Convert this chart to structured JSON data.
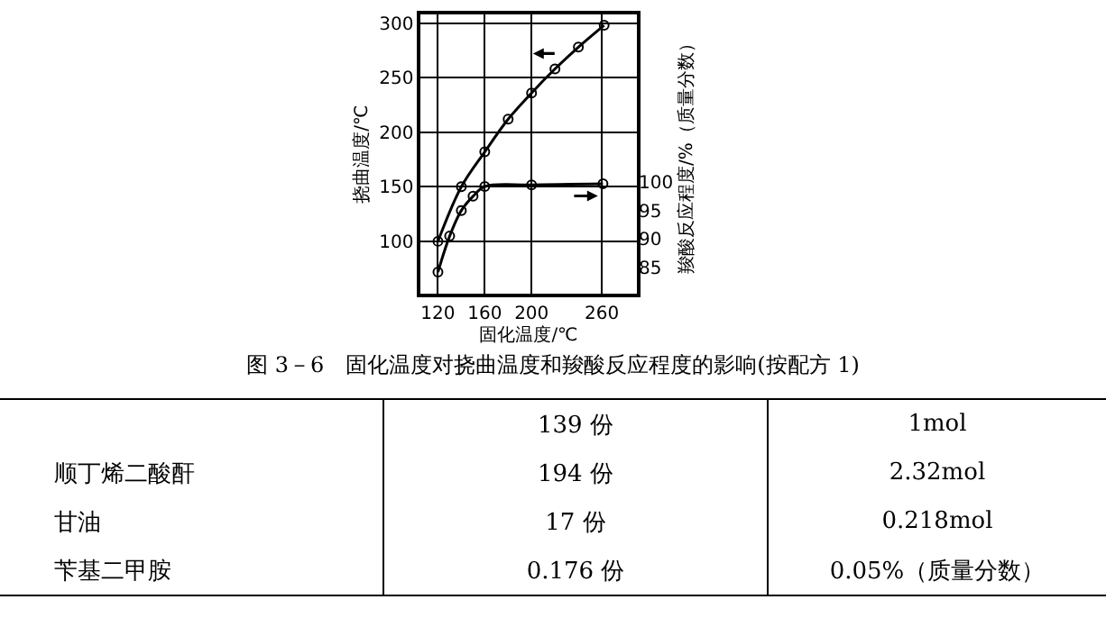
{
  "chart_data": {
    "type": "line",
    "title": "图 3－6　固化温度对挠曲温度和羧酸反应程度的影响(按配方 1)",
    "xlabel": "固化温度/℃",
    "ylabel": "挠曲温度/℃",
    "y2label": "羧酸反应程度/%（质量分数）",
    "xlim": [
      105,
      290
    ],
    "xticks": [
      120,
      160,
      200,
      260
    ],
    "ylim": [
      52,
      308
    ],
    "yticks": [
      100,
      150,
      200,
      250,
      300
    ],
    "y2lim": [
      80.4,
      129.4
    ],
    "y2ticks": [
      85,
      90,
      95,
      100
    ],
    "grid": true,
    "marker": "circle",
    "line_style": "solid",
    "series": [
      {
        "color": "#000000",
        "x": [
          120,
          140,
          160,
          180,
          200,
          220,
          240,
          262
        ],
        "values": [
          100,
          150,
          182,
          212,
          236,
          258,
          278,
          298
        ]
      },
      {
        "color": "#000000",
        "axis": "y2",
        "x": [
          120,
          130,
          140,
          150,
          160,
          200,
          261
        ],
        "values": [
          84.2,
          90.5,
          95,
          97.5,
          99.2,
          99.5,
          99.7
        ]
      }
    ],
    "annotations": [
      "139 份",
      "1mol",
      "顺丁烯二酸酐",
      "194 份",
      "2.32mol",
      "甘油",
      "17 份",
      "0.218mol",
      "苄基二甲胺",
      "0.176 份",
      "0.05%（质量分数）"
    ]
  }
}
